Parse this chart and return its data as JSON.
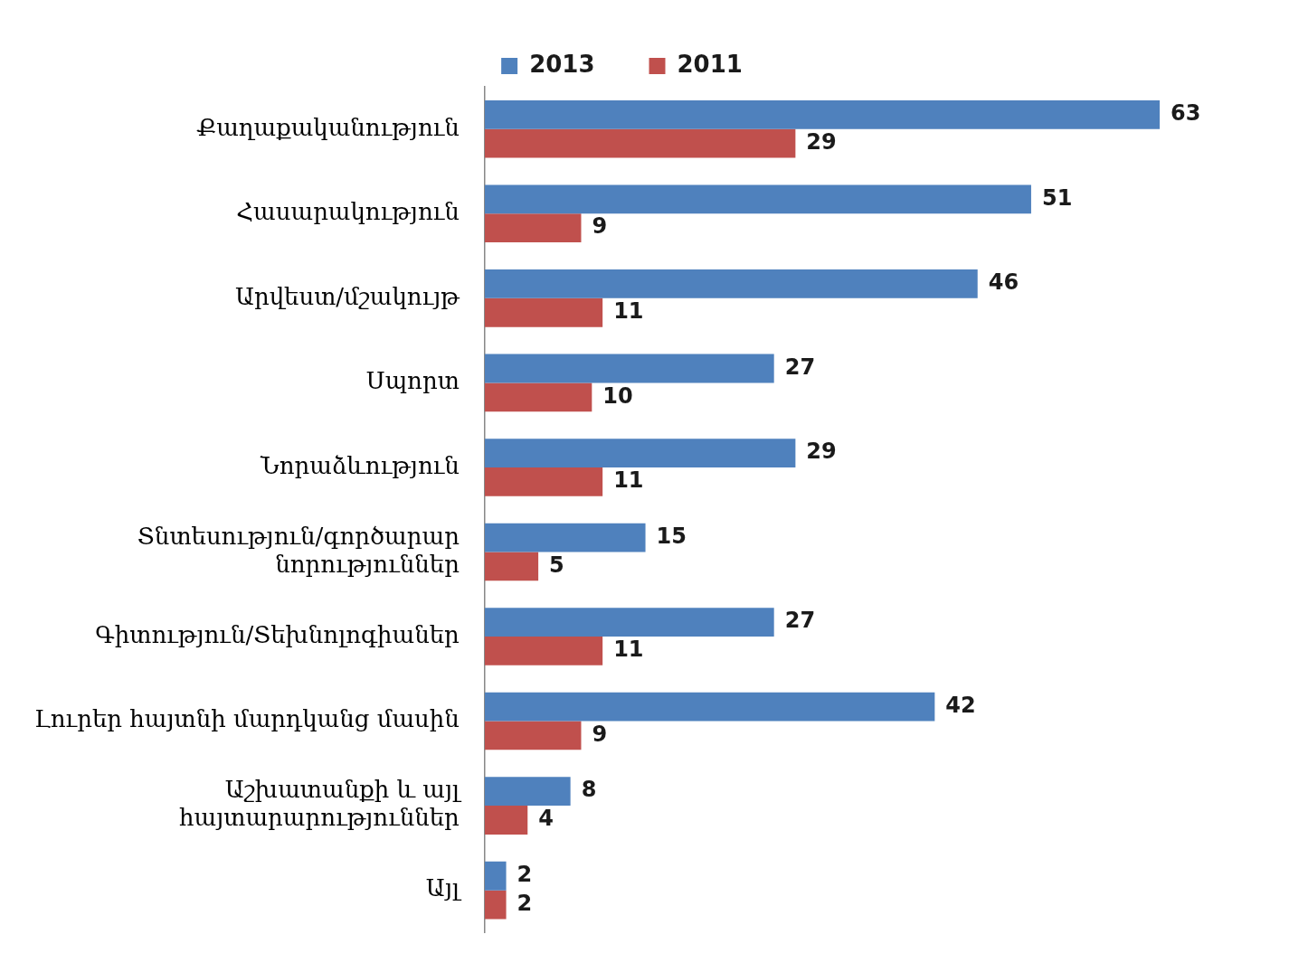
{
  "chart_data": {
    "type": "bar",
    "orientation": "horizontal",
    "categories": [
      "Քաղաքականություն",
      "Հասարակություն",
      "Արվեստ/մշակույթ",
      "Սպորտ",
      "Նորաձևություն",
      "Տնտեսություն/գործարար նորություններ",
      "Գիտություն/Տեխնոլոգիաներ",
      "Լուրեր հայտնի մարդկանց մասին",
      "Աշխատանքի և այլ հայտարարություններ",
      "Այլ"
    ],
    "series": [
      {
        "name": "2013",
        "color": "#4f81bd",
        "values": [
          63,
          51,
          46,
          27,
          29,
          15,
          27,
          42,
          8,
          2
        ]
      },
      {
        "name": "2011",
        "color": "#c0504d",
        "values": [
          29,
          9,
          11,
          10,
          11,
          5,
          11,
          9,
          4,
          2
        ]
      }
    ],
    "data_labels": true,
    "legend": "top",
    "grid": false
  }
}
